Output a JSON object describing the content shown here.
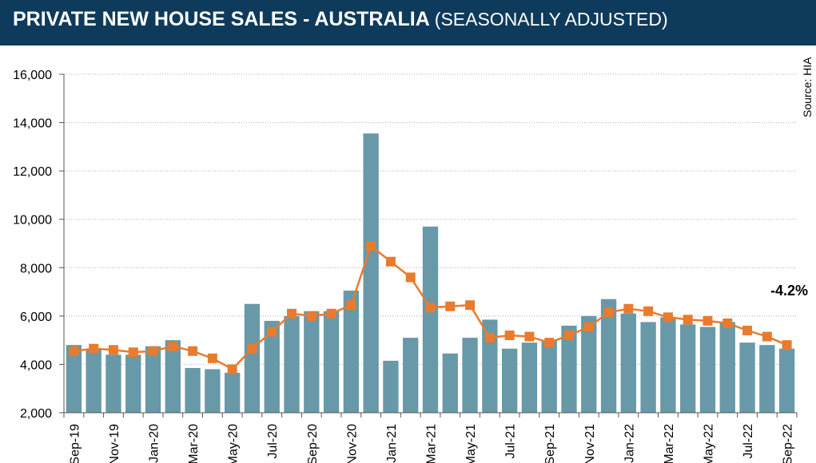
{
  "header": {
    "title_main": "PRIVATE NEW HOUSE SALES -  AUSTRALIA",
    "title_sub": "(SEASONALLY ADJUSTED)"
  },
  "source": "Source: HIA",
  "change_label": "-4.2%",
  "colors": {
    "header_bg": "#0e3b5c",
    "bar": "#6899a8",
    "line": "#e87b2e",
    "grid": "#b0b0b0"
  },
  "chart_data": {
    "type": "bar",
    "title": "PRIVATE NEW HOUSE SALES -  AUSTRALIA (SEASONALLY ADJUSTED)",
    "categories": [
      "Sep-19",
      "Oct-19",
      "Nov-19",
      "Dec-19",
      "Jan-20",
      "Feb-20",
      "Mar-20",
      "Apr-20",
      "May-20",
      "Jun-20",
      "Jul-20",
      "Aug-20",
      "Sep-20",
      "Oct-20",
      "Nov-20",
      "Dec-20",
      "Jan-21",
      "Feb-21",
      "Mar-21",
      "Apr-21",
      "May-21",
      "Jun-21",
      "Jul-21",
      "Aug-21",
      "Sep-21",
      "Oct-21",
      "Nov-21",
      "Dec-21",
      "Jan-22",
      "Feb-22",
      "Mar-22",
      "Apr-22",
      "May-22",
      "Jun-22",
      "Jul-22",
      "Aug-22",
      "Sep-22"
    ],
    "x_tick_labels": [
      "Sep-19",
      "Nov-19",
      "Jan-20",
      "Mar-20",
      "May-20",
      "Jul-20",
      "Sep-20",
      "Nov-20",
      "Jan-21",
      "Mar-21",
      "May-21",
      "Jul-21",
      "Sep-21",
      "Nov-21",
      "Jan-22",
      "Mar-22",
      "May-22",
      "Jul-22",
      "Sep-22"
    ],
    "y_tick_labels": [
      "2,000",
      "4,000",
      "6,000",
      "8,000",
      "10,000",
      "12,000",
      "14,000",
      "16,000"
    ],
    "ylim": [
      2000,
      16000
    ],
    "grid": true,
    "series": [
      {
        "type": "bar",
        "values": [
          4800,
          4650,
          4400,
          4400,
          4750,
          5000,
          3850,
          3800,
          3650,
          6500,
          5800,
          6000,
          6200,
          6200,
          7050,
          13550,
          4150,
          5100,
          9700,
          4450,
          5100,
          5850,
          4650,
          4900,
          5000,
          5600,
          6000,
          6700,
          6100,
          5750,
          5950,
          5650,
          5550,
          5750,
          4900,
          4800,
          4650
        ]
      },
      {
        "type": "line",
        "values": [
          4550,
          4650,
          4600,
          4500,
          4550,
          4750,
          4550,
          4250,
          3800,
          4650,
          5350,
          6100,
          6000,
          6100,
          6450,
          8900,
          8250,
          7600,
          6350,
          6400,
          6450,
          5100,
          5200,
          5150,
          4900,
          5200,
          5550,
          6150,
          6300,
          6200,
          5950,
          5850,
          5800,
          5700,
          5400,
          5150,
          4800
        ]
      }
    ]
  }
}
